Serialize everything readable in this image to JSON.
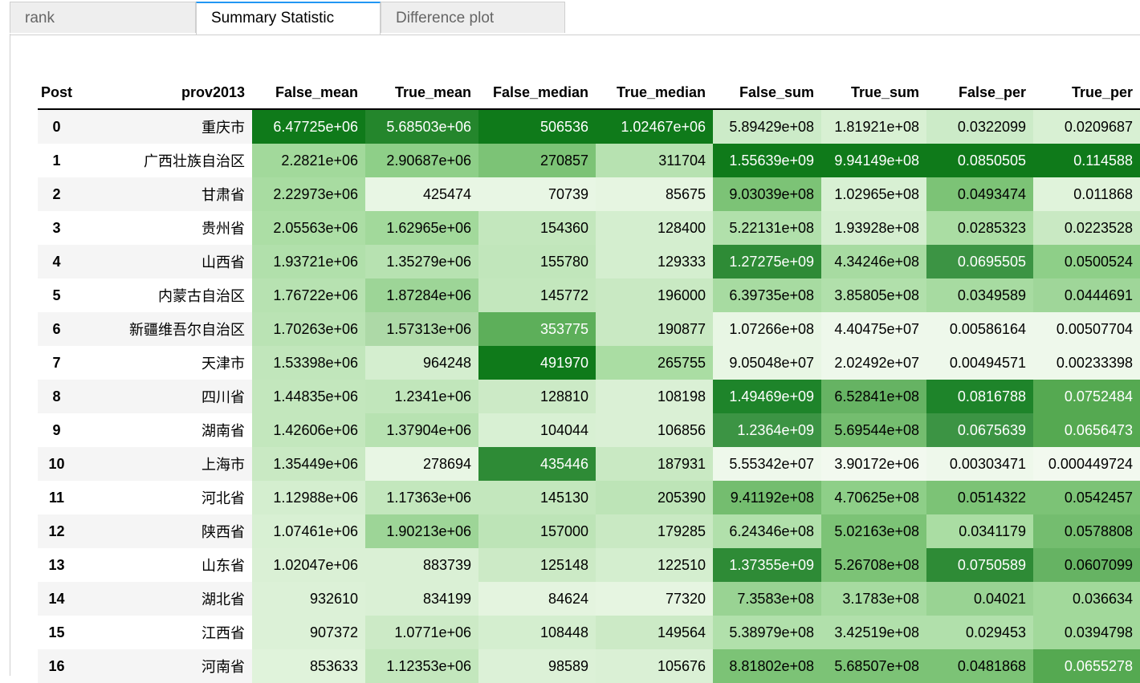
{
  "tabs": [
    {
      "label": "rank",
      "active": false
    },
    {
      "label": "Summary Statistic",
      "active": true
    },
    {
      "label": "Difference plot",
      "active": false
    }
  ],
  "table": {
    "columns": [
      "Post",
      "prov2013",
      "False_mean",
      "True_mean",
      "False_median",
      "True_median",
      "False_sum",
      "True_sum",
      "False_per",
      "True_per"
    ],
    "rows": [
      [
        "0",
        "重庆市",
        "6.47725e+06",
        "5.68503e+06",
        "506536",
        "1.02467e+06",
        "5.89429e+08",
        "1.81921e+08",
        "0.0322099",
        "0.0209687"
      ],
      [
        "1",
        "广西壮族自治区",
        "2.2821e+06",
        "2.90687e+06",
        "270857",
        "311704",
        "1.55639e+09",
        "9.94149e+08",
        "0.0850505",
        "0.114588"
      ],
      [
        "2",
        "甘肃省",
        "2.22973e+06",
        "425474",
        "70739",
        "85675",
        "9.03039e+08",
        "1.02965e+08",
        "0.0493474",
        "0.011868"
      ],
      [
        "3",
        "贵州省",
        "2.05563e+06",
        "1.62965e+06",
        "154360",
        "128400",
        "5.22131e+08",
        "1.93928e+08",
        "0.0285323",
        "0.0223528"
      ],
      [
        "4",
        "山西省",
        "1.93721e+06",
        "1.35279e+06",
        "155780",
        "129333",
        "1.27275e+09",
        "4.34246e+08",
        "0.0695505",
        "0.0500524"
      ],
      [
        "5",
        "内蒙古自治区",
        "1.76722e+06",
        "1.87284e+06",
        "145772",
        "196000",
        "6.39735e+08",
        "3.85805e+08",
        "0.0349589",
        "0.0444691"
      ],
      [
        "6",
        "新疆维吾尔自治区",
        "1.70263e+06",
        "1.57313e+06",
        "353775",
        "190877",
        "1.07266e+08",
        "4.40475e+07",
        "0.00586164",
        "0.00507704"
      ],
      [
        "7",
        "天津市",
        "1.53398e+06",
        "964248",
        "491970",
        "265755",
        "9.05048e+07",
        "2.02492e+07",
        "0.00494571",
        "0.00233398"
      ],
      [
        "8",
        "四川省",
        "1.44835e+06",
        "1.2341e+06",
        "128810",
        "108198",
        "1.49469e+09",
        "6.52841e+08",
        "0.0816788",
        "0.0752484"
      ],
      [
        "9",
        "湖南省",
        "1.42606e+06",
        "1.37904e+06",
        "104044",
        "106856",
        "1.2364e+09",
        "5.69544e+08",
        "0.0675639",
        "0.0656473"
      ],
      [
        "10",
        "上海市",
        "1.35449e+06",
        "278694",
        "435446",
        "187931",
        "5.55342e+07",
        "3.90172e+06",
        "0.00303471",
        "0.000449724"
      ],
      [
        "11",
        "河北省",
        "1.12988e+06",
        "1.17363e+06",
        "145130",
        "205390",
        "9.41192e+08",
        "4.70625e+08",
        "0.0514322",
        "0.0542457"
      ],
      [
        "12",
        "陕西省",
        "1.07461e+06",
        "1.90213e+06",
        "157000",
        "179285",
        "6.24346e+08",
        "5.02163e+08",
        "0.0341179",
        "0.0578808"
      ],
      [
        "13",
        "山东省",
        "1.02047e+06",
        "883739",
        "125148",
        "122510",
        "1.37355e+09",
        "5.26708e+08",
        "0.0750589",
        "0.0607099"
      ],
      [
        "14",
        "湖北省",
        "932610",
        "834199",
        "84624",
        "77320",
        "7.3583e+08",
        "3.1783e+08",
        "0.04021",
        "0.036634"
      ],
      [
        "15",
        "江西省",
        "907372",
        "1.0771e+06",
        "108448",
        "149564",
        "5.38979e+08",
        "3.42519e+08",
        "0.029453",
        "0.0394798"
      ],
      [
        "16",
        "河南省",
        "853633",
        "1.12353e+06",
        "98589",
        "105676",
        "8.81802e+08",
        "5.68507e+08",
        "0.0481868",
        "0.0655278"
      ]
    ],
    "cell_colors": [
      [
        "#0f7a1a",
        "#24862c",
        "#0f7a1a",
        "#0f7a1a",
        "#ccebc8",
        "#d8f0d3",
        "#ccebc8",
        "#d8f0d3"
      ],
      [
        "#a2d99b",
        "#8ecf88",
        "#7cc376",
        "#b7e2b1",
        "#0f7a1a",
        "#0f7a1a",
        "#0f7a1a",
        "#0f7a1a"
      ],
      [
        "#a8dca1",
        "#e8f6e4",
        "#e8f6e4",
        "#e6f5e1",
        "#7cc376",
        "#d8f0d3",
        "#7cc376",
        "#e0f3db"
      ],
      [
        "#acdea5",
        "#a2d99b",
        "#c3e7bd",
        "#d4eecf",
        "#b1e0ab",
        "#d4eecf",
        "#aadda3",
        "#c9e9c3"
      ],
      [
        "#b1e0ab",
        "#b7e2b1",
        "#c1e6bb",
        "#d4eecf",
        "#2e8b36",
        "#a7dba1",
        "#3c9444",
        "#8ecf88"
      ],
      [
        "#b7e2b1",
        "#9dd597",
        "#c3e7bd",
        "#c9e9c3",
        "#a7dba1",
        "#b1e0ab",
        "#a7dba1",
        "#9fd699"
      ],
      [
        "#bae3b4",
        "#add9a7",
        "#5daf5a",
        "#c9e9c3",
        "#e8f6e4",
        "#eef8eb",
        "#eef8eb",
        "#eef8eb"
      ],
      [
        "#c1e6bb",
        "#d4eecf",
        "#0f7a1a",
        "#aadda3",
        "#e8f6e4",
        "#eef8eb",
        "#eef8eb",
        "#eef8eb"
      ],
      [
        "#c3e7bd",
        "#c1e6bb",
        "#cceac6",
        "#daf0d5",
        "#1e842a",
        "#66b363",
        "#1e842a",
        "#55a951"
      ],
      [
        "#c3e7bd",
        "#b7e2b1",
        "#d8f0d3",
        "#daf0d5",
        "#3c9444",
        "#74bd6f",
        "#3c9444",
        "#55a951"
      ],
      [
        "#c9e9c3",
        "#e8f6e4",
        "#2e8b36",
        "#c9e9c3",
        "#eef8eb",
        "#f2f9ef",
        "#eef8eb",
        "#f2f9ef"
      ],
      [
        "#d4eecf",
        "#c3e7bd",
        "#c3e7bd",
        "#bde4b7",
        "#74bd6f",
        "#8ecf88",
        "#7cc376",
        "#7cc376"
      ],
      [
        "#d8f0d3",
        "#9dd597",
        "#bde4b7",
        "#c9e9c3",
        "#b1e0ab",
        "#7cc376",
        "#aadda3",
        "#74bd6f"
      ],
      [
        "#daf0d5",
        "#daf0d5",
        "#cceac6",
        "#d4eecf",
        "#2e8b36",
        "#7cc376",
        "#2e8b36",
        "#66b363"
      ],
      [
        "#dcf1d7",
        "#daf0d5",
        "#e4f4df",
        "#e6f5e1",
        "#99d393",
        "#a7dba1",
        "#99d393",
        "#a2d99b"
      ],
      [
        "#dcf1d7",
        "#cceac6",
        "#d4eecf",
        "#cceac6",
        "#b1e0ab",
        "#b1e0ab",
        "#b1e0ab",
        "#a2d99b"
      ],
      [
        "#e0f3db",
        "#c3e7bd",
        "#dcf1d7",
        "#daf0d5",
        "#7cc376",
        "#7cc376",
        "#7cc376",
        "#55a951"
      ]
    ]
  }
}
